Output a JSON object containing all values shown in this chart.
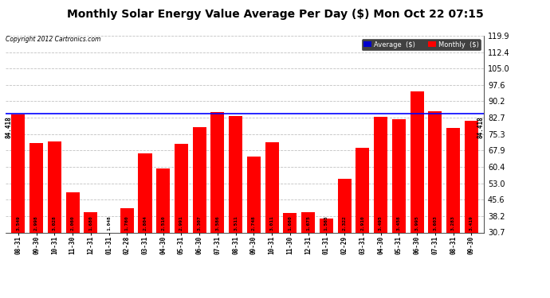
{
  "title": "Monthly Solar Energy Value Average Per Day ($) Mon Oct 22 07:15",
  "copyright": "Copyright 2012 Cartronics.com",
  "categories": [
    "08-31",
    "09-30",
    "10-31",
    "11-30",
    "12-31",
    "01-31",
    "02-28",
    "03-31",
    "04-30",
    "05-31",
    "06-30",
    "07-31",
    "08-31",
    "09-30",
    "10-31",
    "11-30",
    "12-31",
    "01-31",
    "02-29",
    "03-31",
    "04-30",
    "05-31",
    "06-30",
    "07-31",
    "08-31",
    "09-30"
  ],
  "values": [
    84.215,
    71.168,
    71.883,
    48.904,
    39.883,
    24.88,
    41.779,
    66.559,
    59.587,
    71.006,
    78.508,
    85.151,
    83.371,
    65.253,
    71.481,
    39.394,
    39.754,
    37.154,
    55.126,
    69.083,
    82.972,
    82.083,
    94.851,
    85.547,
    77.939,
    81.187
  ],
  "raw_labels": [
    "3.549",
    "2.998",
    "3.028",
    "2.060",
    "1.680",
    "1.048",
    "1.760",
    "2.804",
    "2.510",
    "2.991",
    "3.307",
    "3.586",
    "3.511",
    "2.748",
    "3.011",
    "1.660",
    "1.675",
    "1.565",
    "2.322",
    "2.910",
    "3.495",
    "3.458",
    "3.995",
    "3.603",
    "3.283",
    "3.419"
  ],
  "bar_color": "#ff0000",
  "average_line_value": 84.418,
  "average_line_color": "#0000ff",
  "ylim_min": 30.7,
  "ylim_max": 119.9,
  "yticks": [
    30.7,
    38.2,
    45.6,
    53.0,
    60.4,
    67.9,
    75.3,
    82.7,
    90.2,
    97.6,
    105.0,
    112.4,
    119.9
  ],
  "background_color": "#ffffff",
  "grid_color": "#bbbbbb",
  "title_fontsize": 10,
  "legend_avg_label": "Average  ($)",
  "legend_monthly_label": "Monthly  ($)",
  "avg_label": "84.418"
}
